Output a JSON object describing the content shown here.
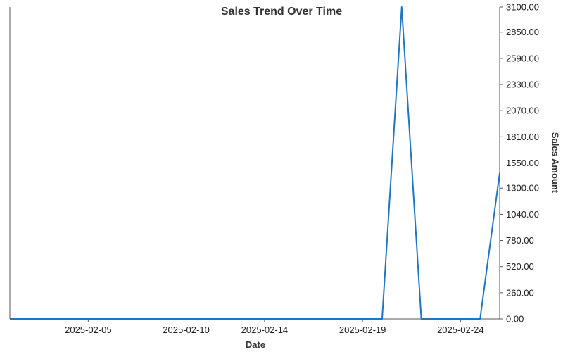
{
  "chart_data": {
    "type": "line",
    "title": "Sales Trend Over Time",
    "xlabel": "Date",
    "ylabel": "Sales Amount",
    "x": [
      "2025-02-01",
      "2025-02-02",
      "2025-02-03",
      "2025-02-04",
      "2025-02-05",
      "2025-02-06",
      "2025-02-07",
      "2025-02-08",
      "2025-02-09",
      "2025-02-10",
      "2025-02-11",
      "2025-02-12",
      "2025-02-13",
      "2025-02-14",
      "2025-02-15",
      "2025-02-16",
      "2025-02-17",
      "2025-02-18",
      "2025-02-19",
      "2025-02-20",
      "2025-02-21",
      "2025-02-22",
      "2025-02-23",
      "2025-02-24",
      "2025-02-25",
      "2025-02-26"
    ],
    "series": [
      {
        "values": [
          0,
          0,
          0,
          0,
          0,
          0,
          0,
          0,
          0,
          0,
          0,
          0,
          0,
          0,
          0,
          0,
          0,
          0,
          0,
          0,
          3100,
          0,
          0,
          0,
          0,
          1450
        ],
        "color": "#1f77c4"
      }
    ],
    "x_tick_labels": [
      "2025-02-05",
      "2025-02-10",
      "2025-02-14",
      "2025-02-19",
      "2025-02-24"
    ],
    "y_tick_labels": [
      "0.00",
      "260.00",
      "520.00",
      "780.00",
      "1040.00",
      "1300.00",
      "1550.00",
      "1810.00",
      "2070.00",
      "2330.00",
      "2590.00",
      "2850.00",
      "3100.00"
    ],
    "ylim": [
      0,
      3100
    ],
    "y_axis_side": "right",
    "grid": false,
    "legend": false
  }
}
